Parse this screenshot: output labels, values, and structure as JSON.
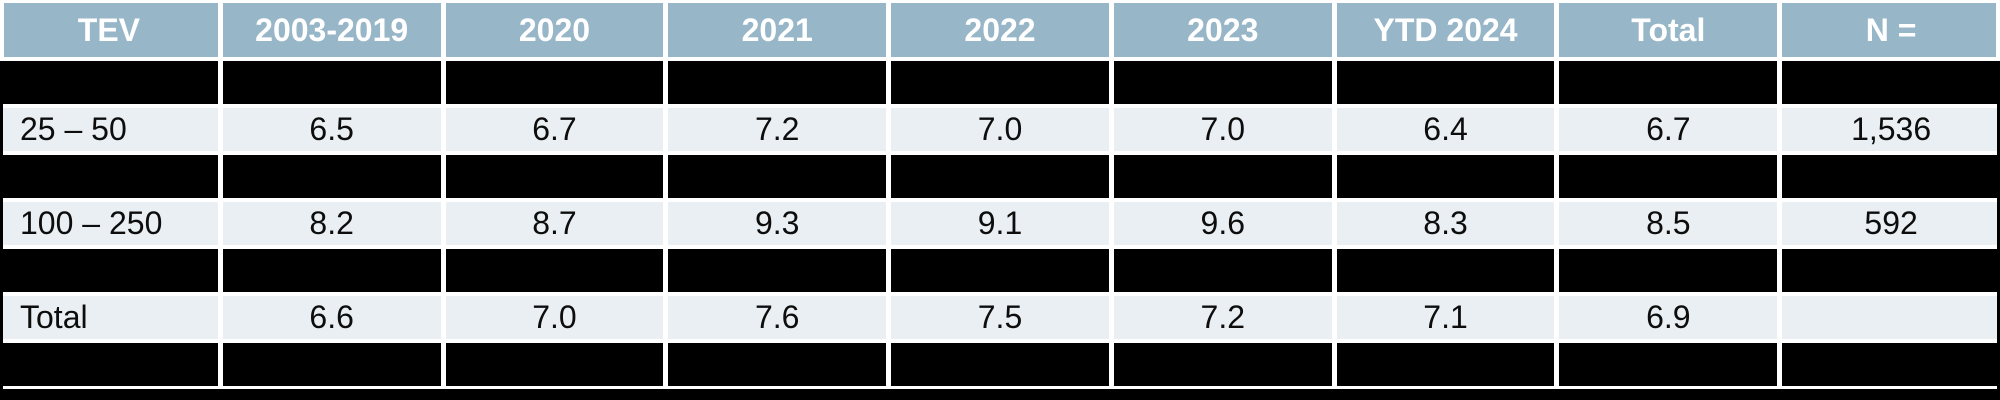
{
  "chart_data": {
    "type": "table",
    "columns": [
      "TEV",
      "2003-2019",
      "2020",
      "2021",
      "2022",
      "2023",
      "YTD 2024",
      "Total",
      "N ="
    ],
    "rows": [
      {
        "redacted": true,
        "label": "",
        "values": [
          "",
          "",
          "",
          "",
          "",
          "",
          "",
          ""
        ]
      },
      {
        "redacted": false,
        "label": "25 – 50",
        "values": [
          "6.5",
          "6.7",
          "7.2",
          "7.0",
          "7.0",
          "6.4",
          "6.7",
          "1,536"
        ]
      },
      {
        "redacted": true,
        "label": "",
        "values": [
          "",
          "",
          "",
          "",
          "",
          "",
          "",
          ""
        ]
      },
      {
        "redacted": false,
        "label": "100 – 250",
        "values": [
          "8.2",
          "8.7",
          "9.3",
          "9.1",
          "9.6",
          "8.3",
          "8.5",
          "592"
        ]
      },
      {
        "redacted": true,
        "label": "",
        "values": [
          "",
          "",
          "",
          "",
          "",
          "",
          "",
          ""
        ]
      },
      {
        "redacted": false,
        "label": "Total",
        "values": [
          "6.6",
          "7.0",
          "7.6",
          "7.5",
          "7.2",
          "7.1",
          "6.9",
          ""
        ]
      },
      {
        "redacted": true,
        "label": "",
        "values": [
          "",
          "",
          "",
          "",
          "",
          "",
          "",
          ""
        ]
      }
    ]
  },
  "colors": {
    "header_bg": "#97B6C7",
    "header_text": "#FFFFFF",
    "row_bg": "#E9EFF2",
    "redacted": "#000000",
    "grid_gap": "#FFFFFF"
  }
}
